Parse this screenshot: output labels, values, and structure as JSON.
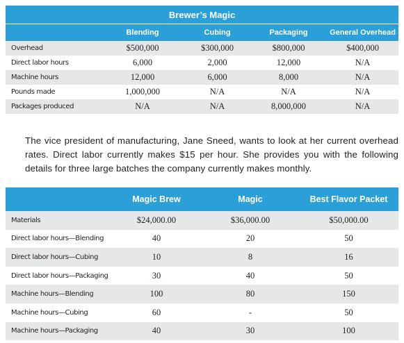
{
  "table1": {
    "title": "Brewer’s Magic",
    "columns": [
      "Blending",
      "Cubing",
      "Packaging",
      "General Overhead"
    ],
    "rows": [
      [
        "Overhead",
        "$500,000",
        "$300,000",
        "$800,000",
        "$400,000"
      ],
      [
        "Direct labor hours",
        "6,000",
        "2,000",
        "12,000",
        "N/A"
      ],
      [
        "Machine hours",
        "12,000",
        "6,000",
        "8,000",
        "N/A"
      ],
      [
        "Pounds made",
        "1,000,000",
        "N/A",
        "N/A",
        "N/A"
      ],
      [
        "Packages produced",
        "N/A",
        "N/A",
        "8,000,000",
        "N/A"
      ]
    ]
  },
  "paragraph": "The vice president of manufacturing, Jane Sneed, wants to look at her current overhead rates. Direct labor currently makes $15 per hour. She provides you with the following details for three large batches the company currently makes monthly.",
  "table2": {
    "columns": [
      "Magic Brew",
      "Magic",
      "Best Flavor Packet"
    ],
    "rows": [
      [
        "Materials",
        "$24,000.00",
        "$36,000.00",
        "$50,000.00"
      ],
      [
        "Direct labor hours—Blending",
        "40",
        "20",
        "50"
      ],
      [
        "Direct labor hours—Cubing",
        "10",
        "8",
        "16"
      ],
      [
        "Direct labor hours—Packaging",
        "30",
        "40",
        "50"
      ],
      [
        "Machine hours—Blending",
        "100",
        "80",
        "150"
      ],
      [
        "Machine hours—Cubing",
        "60",
        "-",
        "50"
      ],
      [
        "Machine hours—Packaging",
        "40",
        "30",
        "100"
      ]
    ]
  }
}
